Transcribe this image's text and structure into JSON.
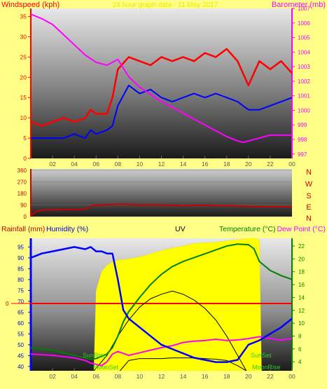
{
  "chart_data": [
    {
      "type": "line",
      "panel": "wind-baro",
      "subtitle": "24 hour graph data - 11 May 2017",
      "ylabel_left": "Windspeed (kph)",
      "ylabel_right": "Barometer (mb)",
      "ylim_left": [
        0,
        37
      ],
      "ylim_right": [
        996.7,
        1007
      ],
      "yticks_left": [
        "0",
        "5",
        "10",
        "15",
        "20",
        "25",
        "30",
        "35"
      ],
      "yticks_right": [
        "997",
        "998",
        "999",
        "1000",
        "1001",
        "1002",
        "1003",
        "1004",
        "1005",
        "1006",
        "1007"
      ],
      "xlim": [
        0,
        24
      ],
      "xticks": [
        "02",
        "04",
        "06",
        "08",
        "10",
        "12",
        "14",
        "16",
        "18",
        "20",
        "22",
        "00"
      ],
      "colors": {
        "gust": "#ff0000",
        "average": "#0000ff",
        "barometer": "#ff00ff"
      },
      "series": [
        {
          "key": "gust",
          "axis": "left",
          "x": [
            0,
            1,
            2,
            3,
            4,
            5,
            5.5,
            6,
            7,
            7.5,
            8,
            9,
            10,
            11,
            12,
            13,
            14,
            15,
            16,
            17,
            18,
            19,
            20,
            21,
            22,
            23,
            24
          ],
          "y": [
            9,
            8,
            9,
            10,
            9,
            10,
            12,
            11,
            11,
            15,
            22,
            25,
            24,
            23,
            25,
            24,
            25,
            24,
            26,
            25,
            27,
            24,
            18,
            24,
            22,
            24,
            21
          ]
        },
        {
          "key": "average",
          "axis": "left",
          "x": [
            0,
            1,
            2,
            3,
            4,
            5,
            5.5,
            6,
            7,
            7.5,
            8,
            9,
            10,
            11,
            12,
            13,
            14,
            15,
            16,
            17,
            18,
            19,
            20,
            21,
            22,
            23,
            24
          ],
          "y": [
            5,
            5,
            5,
            5,
            6,
            5,
            7,
            6,
            7,
            8,
            13,
            18,
            16,
            17,
            15,
            14,
            15,
            16,
            15,
            16,
            15,
            14,
            12,
            12,
            13,
            14,
            15
          ]
        },
        {
          "key": "barometer",
          "axis": "right",
          "x": [
            0,
            1,
            2,
            3,
            4,
            5,
            6,
            7,
            8,
            9,
            10,
            11,
            12,
            13,
            14,
            15,
            16,
            17,
            18,
            19,
            19.5,
            20,
            21,
            22,
            23,
            24
          ],
          "y": [
            1006.6,
            1006.3,
            1005.9,
            1005.2,
            1004.5,
            1003.8,
            1003.3,
            1003.1,
            1003.5,
            1002.3,
            1001.6,
            1001.1,
            1000.6,
            1000.2,
            999.8,
            999.4,
            999.0,
            998.6,
            998.2,
            997.9,
            997.8,
            997.9,
            998.1,
            998.3,
            998.3,
            998.3
          ]
        }
      ]
    },
    {
      "type": "line",
      "panel": "direction",
      "yticks": [
        "0",
        "90",
        "180",
        "270",
        "360"
      ],
      "ylim": [
        0,
        360
      ],
      "compass": [
        "N",
        "W",
        "S",
        "E",
        "N"
      ],
      "colors": {
        "direction": "#cc0000"
      },
      "series": [
        {
          "key": "direction",
          "x": [
            0,
            0.5,
            1,
            2,
            3,
            4,
            5,
            5.6,
            6,
            7,
            8,
            9,
            10,
            11,
            12,
            13,
            14,
            15,
            16,
            17,
            18,
            19,
            20,
            21,
            22,
            23,
            24
          ],
          "y": [
            10,
            40,
            50,
            52,
            55,
            55,
            58,
            85,
            88,
            92,
            95,
            95,
            90,
            92,
            90,
            88,
            85,
            88,
            87,
            86,
            85,
            84,
            80,
            78,
            75,
            76,
            78
          ]
        }
      ]
    },
    {
      "type": "line",
      "panel": "rain-temp",
      "labels": {
        "rainfall": "Rainfall (mm)",
        "humidity": "Humidity (%)",
        "uv": "UV",
        "temperature": "Temperature (°C)",
        "dewpoint": "Dew Point (°C)"
      },
      "ylim_humidity": [
        38,
        99
      ],
      "yticks_humidity": [
        "40",
        "45",
        "50",
        "55",
        "60",
        "65",
        "70",
        "75",
        "80",
        "85",
        "90",
        "95"
      ],
      "ylim_temp": [
        2.6,
        23.2
      ],
      "yticks_temp": [
        "4",
        "6",
        "8",
        "10",
        "12",
        "14",
        "16",
        "18",
        "20",
        "22"
      ],
      "rain_tick": "0",
      "xlim": [
        0,
        24
      ],
      "xticks": [
        "02",
        "04",
        "06",
        "08",
        "10",
        "12",
        "14",
        "16",
        "18",
        "20",
        "22",
        "00"
      ],
      "annotations": {
        "sunrise": "SunRise",
        "moonset": "MoonSet",
        "sunset": "SunSet",
        "moonrise": "MoonRise"
      },
      "colors": {
        "humidity": "#0000ff",
        "temperature": "#008000",
        "dewpoint": "#ff00ff",
        "uv": "#ffff00",
        "rain": "#ff0000",
        "elevation": "#000000"
      },
      "series": [
        {
          "key": "humidity",
          "x": [
            0,
            0.5,
            1,
            2,
            3,
            4,
            5,
            5.5,
            6,
            6.5,
            7,
            7.5,
            8,
            8.5,
            9,
            10,
            11,
            12,
            13,
            14,
            15,
            16,
            17,
            18,
            19,
            20,
            21,
            22,
            23,
            24
          ],
          "y": [
            90,
            91,
            92,
            93,
            94,
            95,
            94,
            95,
            93,
            93,
            92,
            92,
            80,
            66,
            62,
            58,
            54,
            50,
            48,
            46,
            44,
            43,
            42,
            42,
            43,
            50,
            52,
            55,
            58,
            62
          ]
        },
        {
          "key": "temperature",
          "x": [
            0,
            1,
            2,
            3,
            4,
            5,
            5.5,
            6,
            7,
            7.5,
            8,
            8.5,
            9,
            10,
            11,
            12,
            13,
            14,
            15,
            16,
            17,
            18,
            19,
            20,
            20.5,
            21,
            22,
            23,
            24
          ],
          "y": [
            6.2,
            6.0,
            5.8,
            5.4,
            5.0,
            4.6,
            4.4,
            4.5,
            5.2,
            6.2,
            8.0,
            10.2,
            11.8,
            14.0,
            16.0,
            17.6,
            18.8,
            19.6,
            20.2,
            20.8,
            21.4,
            22.0,
            22.3,
            22.2,
            21.6,
            19.6,
            18.2,
            17.4,
            16.8
          ]
        },
        {
          "key": "dewpoint",
          "x": [
            0,
            1,
            2,
            3,
            4,
            5,
            5.5,
            6,
            6.5,
            7,
            7.5,
            8,
            9,
            10,
            11,
            12,
            13,
            14,
            15,
            16,
            17,
            18,
            19,
            20,
            21,
            22,
            23,
            24
          ],
          "y": [
            5.2,
            5.1,
            5.0,
            4.8,
            4.6,
            4.2,
            3.8,
            3.6,
            3.4,
            4.0,
            5.2,
            5.6,
            5.0,
            5.4,
            5.8,
            6.2,
            6.5,
            7.0,
            7.2,
            7.3,
            7.5,
            7.3,
            7.4,
            7.6,
            7.9,
            7.6,
            7.4,
            7.6
          ]
        },
        {
          "key": "uv",
          "x": [
            5.8,
            6,
            6.5,
            7,
            7.5,
            8,
            9,
            10,
            11,
            12,
            13,
            14,
            15,
            16,
            17,
            18,
            18.5,
            19,
            19.5,
            20,
            20.5,
            21,
            21.2
          ],
          "y": [
            2.6,
            15,
            18,
            19,
            19.5,
            19.8,
            20,
            20.3,
            20.8,
            21.3,
            21.7,
            22,
            22.4,
            22.5,
            22.6,
            22.8,
            22.9,
            23.0,
            23.1,
            23.2,
            23.2,
            23.0,
            2.6
          ]
        },
        {
          "key": "elevation",
          "x": [
            5.8,
            7,
            8,
            9,
            10,
            11,
            12,
            13,
            14,
            15,
            16,
            17,
            18,
            19,
            19.8
          ],
          "y": [
            2.6,
            5,
            8,
            10.5,
            12.5,
            13.8,
            14.5,
            15,
            14.5,
            13.6,
            12.3,
            10.5,
            8,
            5,
            2.6
          ]
        },
        {
          "key": "moon",
          "x": [
            8.2,
            9,
            10,
            11,
            12,
            13,
            14,
            15,
            16,
            17,
            18,
            19,
            19.8
          ],
          "y": [
            2.6,
            4.2,
            4.5,
            4.5,
            4.5,
            4.6,
            4.6,
            4.6,
            4.5,
            4.4,
            4.2,
            3.4,
            2.6
          ]
        }
      ]
    }
  ]
}
